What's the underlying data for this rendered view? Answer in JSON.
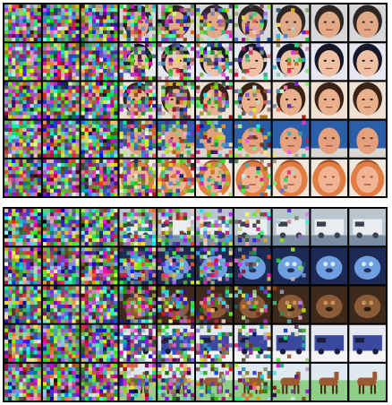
{
  "figure": {
    "panels": [
      {
        "id": "faces",
        "rows": [
          {
            "subject": "man-face",
            "palette": {
              "bg": "#d7d7d9",
              "main": "#e2a987",
              "dark": "#2e2622",
              "accent": "#3a3a3e"
            }
          },
          {
            "subject": "child-face",
            "palette": {
              "bg": "#e7e7f2",
              "main": "#efc0a3",
              "dark": "#17172a",
              "accent": "#1f2d7a"
            }
          },
          {
            "subject": "woman-face",
            "palette": {
              "bg": "#efe2d5",
              "main": "#e8b08d",
              "dark": "#3a2316",
              "accent": "#c06a3a"
            }
          },
          {
            "subject": "bald-man",
            "palette": {
              "bg": "#2b5ea8",
              "main": "#e5a07e",
              "dark": "#5a3826",
              "accent": "#d9d6cf"
            }
          },
          {
            "subject": "blonde-woman",
            "palette": {
              "bg": "#efe6dc",
              "main": "#f0b494",
              "dark": "#a44d26",
              "accent": "#e07d43"
            }
          }
        ]
      },
      {
        "id": "objects",
        "rows": [
          {
            "subject": "truck",
            "palette": {
              "bg": "#b9c6cf",
              "main": "#e9edf0",
              "dark": "#39424c",
              "accent": "#7a8da2"
            }
          },
          {
            "subject": "blue-animal",
            "palette": {
              "bg": "#1d2a55",
              "main": "#6f9fe0",
              "dark": "#223060",
              "accent": "#dde8f5"
            }
          },
          {
            "subject": "brown-animal",
            "palette": {
              "bg": "#3d2a1d",
              "main": "#8b5a36",
              "dark": "#2a1c12",
              "accent": "#c8945e"
            }
          },
          {
            "subject": "vehicle",
            "palette": {
              "bg": "#e6e8f0",
              "main": "#3a48a0",
              "dark": "#1b1f3c",
              "accent": "#f4f4f7"
            }
          },
          {
            "subject": "horse",
            "palette": {
              "bg": "#8fcf8a",
              "main": "#9b5a32",
              "dark": "#4b2a15",
              "accent": "#dfe9f2"
            }
          }
        ]
      }
    ],
    "steps": 10
  }
}
